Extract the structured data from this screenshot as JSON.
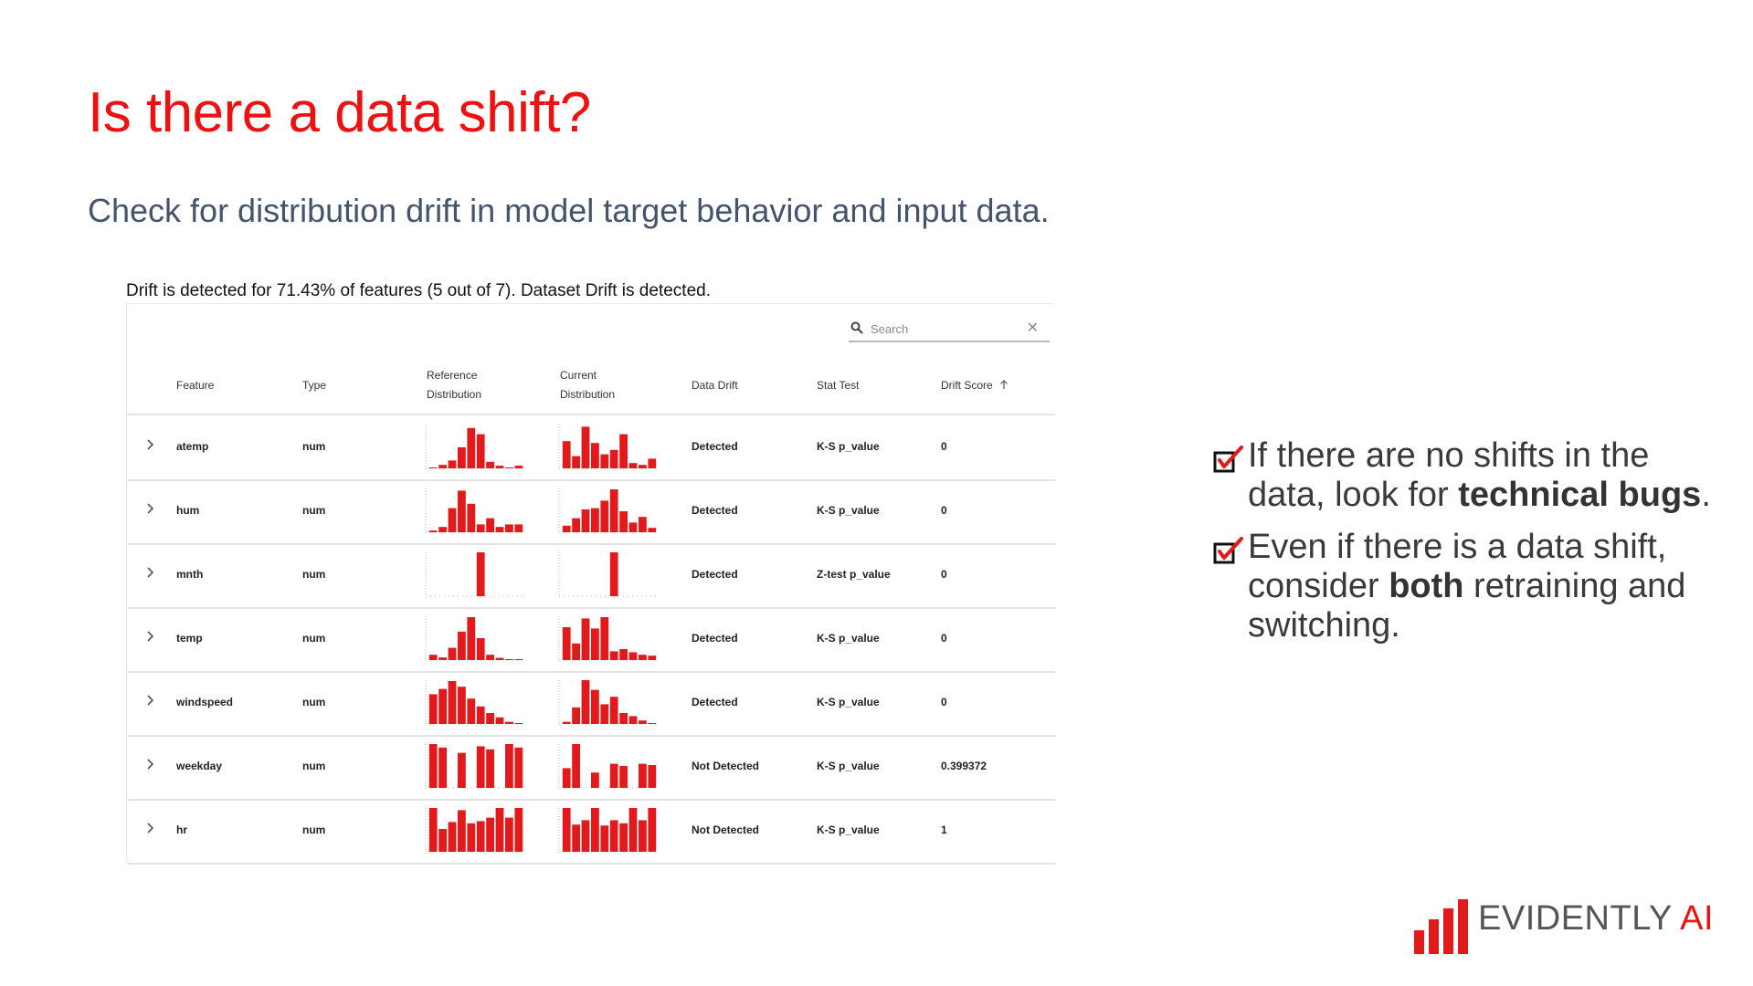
{
  "slide": {
    "title": "Is there a data shift?",
    "subtitle": "Check for distribution drift in model target behavior and input data."
  },
  "report": {
    "summary": "Drift is detected for 71.43% of features (5 out of 7). Dataset Drift is detected.",
    "search": {
      "placeholder": "Search"
    },
    "columns": {
      "feature": "Feature",
      "type": "Type",
      "reference_1": "Reference",
      "reference_2": "Distribution",
      "current_1": "Current",
      "current_2": "Distribution",
      "data_drift": "Data Drift",
      "stat_test": "Stat Test",
      "drift_score": "Drift Score",
      "sort_icon": "arrow-up-icon"
    },
    "accent_color": "#e31a1c",
    "rows": [
      {
        "feature": "atemp",
        "type": "num",
        "drift": "Detected",
        "test": "K-S p_value",
        "score": "0",
        "ref": [
          0.02,
          0.08,
          0.18,
          0.48,
          0.92,
          0.78,
          0.15,
          0.06,
          0.02,
          0.06
        ],
        "cur": [
          0.62,
          0.28,
          0.95,
          0.58,
          0.32,
          0.42,
          0.78,
          0.12,
          0.08,
          0.22
        ]
      },
      {
        "feature": "hum",
        "type": "num",
        "drift": "Detected",
        "test": "K-S p_value",
        "score": "0",
        "ref": [
          0.04,
          0.12,
          0.55,
          0.95,
          0.65,
          0.18,
          0.32,
          0.12,
          0.18,
          0.18
        ],
        "cur": [
          0.15,
          0.32,
          0.52,
          0.55,
          0.72,
          0.98,
          0.48,
          0.22,
          0.35,
          0.1
        ]
      },
      {
        "feature": "mnth",
        "type": "num",
        "drift": "Detected",
        "test": "Z-test p_value",
        "score": "0",
        "ref": [
          0,
          0,
          0,
          0,
          0,
          1,
          0,
          0,
          0,
          0
        ],
        "cur": [
          0,
          0,
          0,
          0,
          0,
          1,
          0,
          0,
          0,
          0
        ]
      },
      {
        "feature": "temp",
        "type": "num",
        "drift": "Detected",
        "test": "K-S p_value",
        "score": "0",
        "ref": [
          0.12,
          0.06,
          0.28,
          0.65,
          0.98,
          0.5,
          0.12,
          0.05,
          0.02,
          0.02
        ],
        "cur": [
          0.75,
          0.38,
          0.95,
          0.72,
          0.98,
          0.2,
          0.25,
          0.18,
          0.12,
          0.1
        ]
      },
      {
        "feature": "windspeed",
        "type": "num",
        "drift": "Detected",
        "test": "K-S p_value",
        "score": "0",
        "ref": [
          0.68,
          0.8,
          0.98,
          0.85,
          0.58,
          0.4,
          0.25,
          0.15,
          0.05,
          0.02
        ],
        "cur": [
          0.05,
          0.38,
          1.0,
          0.78,
          0.45,
          0.62,
          0.25,
          0.18,
          0.08,
          0.02
        ]
      },
      {
        "feature": "weekday",
        "type": "num",
        "drift": "Not Detected",
        "test": "K-S p_value",
        "score": "0.399372",
        "ref": [
          1.0,
          0.92,
          0,
          0.8,
          0,
          0.95,
          0.88,
          0,
          1.0,
          0.92
        ],
        "cur": [
          0.45,
          1.0,
          0,
          0.35,
          0,
          0.55,
          0.5,
          0,
          0.55,
          0.52
        ]
      },
      {
        "feature": "hr",
        "type": "num",
        "drift": "Not Detected",
        "test": "K-S p_value",
        "score": "1",
        "ref": [
          1.0,
          0.52,
          0.68,
          0.95,
          0.65,
          0.7,
          0.78,
          1.0,
          0.78,
          1.0
        ],
        "cur": [
          1.0,
          0.62,
          0.72,
          1.0,
          0.6,
          0.72,
          0.65,
          1.0,
          0.72,
          1.0
        ]
      }
    ]
  },
  "bullets": {
    "item1": {
      "pre": " If there are no shifts in the data, look for ",
      "bold": "technical bugs",
      "post": "."
    },
    "item2": {
      "pre": "Even if there is a data shift, consider ",
      "bold": "both",
      "post": " retraining and switching."
    }
  },
  "logo": {
    "name": "EVIDENTLY",
    "suffix": "AI"
  }
}
